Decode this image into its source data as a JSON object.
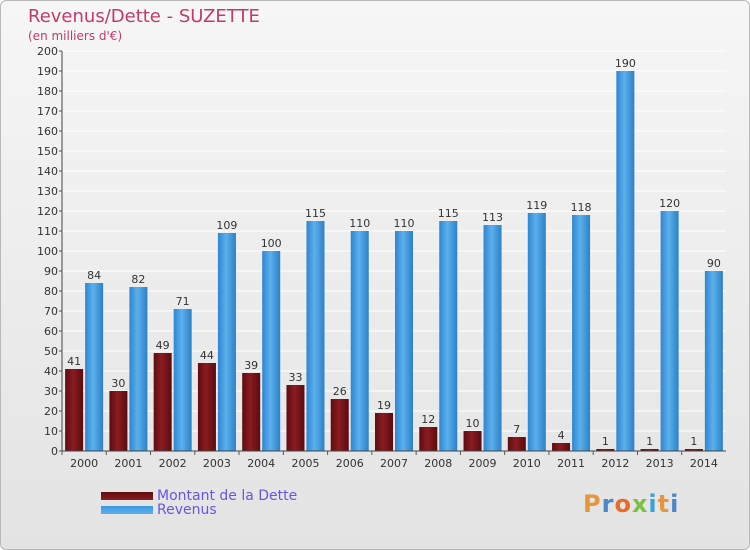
{
  "header": {
    "title": "Revenus/Dette - SUZETTE",
    "subtitle": "(en milliers d'€)"
  },
  "colors": {
    "dette": "#7a1418",
    "revenus": "#3f97de",
    "grid": "#ffffff",
    "title": "#c23a6a",
    "legend_text": "#6b54e0"
  },
  "legend": {
    "dette_label": "Montant de la Dette",
    "revenus_label": "Revenus"
  },
  "logo": {
    "letters": [
      "P",
      "r",
      "o",
      "x",
      "i",
      "t",
      "i"
    ],
    "colors": [
      "#e8963b",
      "#4a86c9",
      "#e86b2a",
      "#7cc043",
      "#3aa3d6",
      "#e8963b",
      "#4a86c9"
    ]
  },
  "chart_data": {
    "type": "bar",
    "categories": [
      "2000",
      "2001",
      "2002",
      "2003",
      "2004",
      "2005",
      "2006",
      "2007",
      "2008",
      "2009",
      "2010",
      "2011",
      "2012",
      "2013",
      "2014"
    ],
    "series": [
      {
        "name": "Montant de la Dette",
        "values": [
          41,
          30,
          49,
          44,
          39,
          33,
          26,
          19,
          12,
          10,
          7,
          4,
          1,
          1,
          1
        ]
      },
      {
        "name": "Revenus",
        "values": [
          84,
          82,
          71,
          109,
          100,
          115,
          110,
          110,
          115,
          113,
          119,
          118,
          190,
          120,
          90
        ]
      }
    ],
    "ylim": [
      0,
      200
    ],
    "yticks": [
      0,
      10,
      20,
      30,
      40,
      50,
      60,
      70,
      80,
      90,
      100,
      110,
      120,
      130,
      140,
      150,
      160,
      170,
      180,
      190,
      200
    ],
    "grid": true,
    "legend_position": "bottom-left"
  }
}
